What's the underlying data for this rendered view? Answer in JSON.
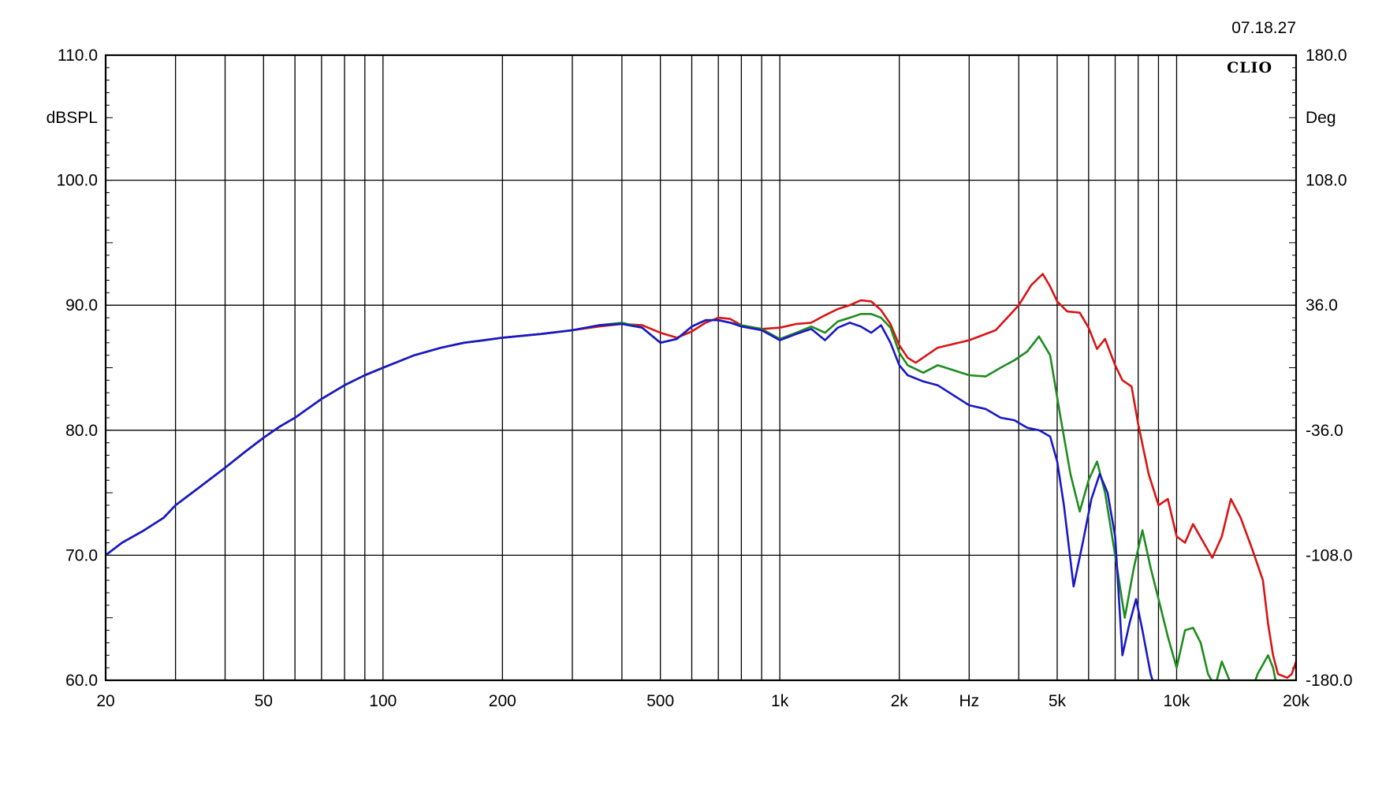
{
  "chart_data": {
    "type": "line",
    "timestamp": "07.18.27",
    "brand": "CLIO",
    "left_axis_unit": "dBSPL",
    "right_axis_unit": "Deg",
    "x_unit": "Hz",
    "x_scale": "log",
    "xlim": [
      20,
      20000
    ],
    "ylim": [
      60,
      110
    ],
    "y2lim": [
      -180,
      180
    ],
    "grid": true,
    "y_ticks": [
      {
        "value": 60,
        "label": "60.0"
      },
      {
        "value": 70,
        "label": "70.0"
      },
      {
        "value": 80,
        "label": "80.0"
      },
      {
        "value": 90,
        "label": "90.0"
      },
      {
        "value": 100,
        "label": "100.0"
      },
      {
        "value": 110,
        "label": "110.0"
      }
    ],
    "y2_ticks": [
      {
        "value": -180,
        "label": "-180.0"
      },
      {
        "value": -108,
        "label": "-108.0"
      },
      {
        "value": -36,
        "label": "-36.0"
      },
      {
        "value": 36,
        "label": "36.0"
      },
      {
        "value": 108,
        "label": "108.0"
      },
      {
        "value": 180,
        "label": "180.0"
      }
    ],
    "x_ticks": [
      {
        "value": 20,
        "label": "20"
      },
      {
        "value": 50,
        "label": "50"
      },
      {
        "value": 100,
        "label": "100"
      },
      {
        "value": 200,
        "label": "200"
      },
      {
        "value": 500,
        "label": "500"
      },
      {
        "value": 1000,
        "label": "1k"
      },
      {
        "value": 2000,
        "label": "2k"
      },
      {
        "value": 5000,
        "label": "5k"
      },
      {
        "value": 10000,
        "label": "10k"
      },
      {
        "value": 20000,
        "label": "20k"
      }
    ],
    "x_unit_position_value": 3000,
    "x_gridlines": [
      20,
      30,
      40,
      50,
      60,
      70,
      80,
      90,
      100,
      200,
      300,
      400,
      500,
      600,
      700,
      800,
      900,
      1000,
      2000,
      3000,
      4000,
      5000,
      6000,
      7000,
      8000,
      9000,
      10000,
      20000
    ],
    "series": [
      {
        "color": "#d81414",
        "x": [
          20,
          22,
          25,
          28,
          30,
          35,
          40,
          45,
          50,
          55,
          60,
          70,
          80,
          90,
          100,
          120,
          140,
          160,
          180,
          200,
          250,
          300,
          350,
          400,
          450,
          500,
          550,
          600,
          650,
          700,
          750,
          800,
          900,
          1000,
          1100,
          1200,
          1300,
          1400,
          1500,
          1600,
          1700,
          1800,
          1900,
          2000,
          2100,
          2200,
          2500,
          3000,
          3500,
          4000,
          4300,
          4600,
          4800,
          5000,
          5300,
          5700,
          6000,
          6300,
          6600,
          7000,
          7300,
          7700,
          8000,
          8500,
          9000,
          9500,
          10000,
          10500,
          11000,
          11700,
          12300,
          13000,
          13700,
          14500,
          15500,
          16500,
          17000,
          17500,
          18000,
          19000,
          19500,
          20000
        ],
        "y": [
          70,
          71,
          72,
          73,
          74,
          75.6,
          77,
          78.3,
          79.4,
          80.3,
          81,
          82.5,
          83.6,
          84.4,
          85,
          86,
          86.6,
          87,
          87.2,
          87.4,
          87.7,
          88,
          88.3,
          88.5,
          88.4,
          87.8,
          87.4,
          87.9,
          88.6,
          89,
          88.9,
          88.4,
          88.1,
          88.2,
          88.5,
          88.6,
          89.2,
          89.7,
          90.0,
          90.4,
          90.3,
          89.6,
          88.5,
          86.8,
          85.8,
          85.4,
          86.6,
          87.2,
          88.0,
          90.0,
          91.6,
          92.5,
          91.5,
          90.3,
          89.5,
          89.4,
          88.2,
          86.5,
          87.3,
          85.2,
          84.0,
          83.5,
          80.5,
          76.5,
          74,
          74.5,
          71.5,
          71,
          72.5,
          71.0,
          69.8,
          71.5,
          74.5,
          73,
          70.5,
          68,
          64.5,
          62,
          60.5,
          60.2,
          60.5,
          61.5
        ]
      },
      {
        "color": "#1e8c1e",
        "x": [
          20,
          22,
          25,
          28,
          30,
          35,
          40,
          45,
          50,
          55,
          60,
          70,
          80,
          90,
          100,
          120,
          140,
          160,
          180,
          200,
          250,
          300,
          350,
          400,
          450,
          500,
          550,
          600,
          650,
          700,
          750,
          800,
          900,
          1000,
          1100,
          1200,
          1300,
          1400,
          1500,
          1600,
          1700,
          1800,
          1900,
          2000,
          2100,
          2300,
          2500,
          3000,
          3300,
          3600,
          3900,
          4200,
          4500,
          4800,
          5100,
          5400,
          5700,
          6000,
          6300,
          6600,
          7000,
          7400,
          7800,
          8200,
          8600,
          9000,
          9500,
          10000,
          10500,
          11000,
          11500,
          12000,
          12500,
          13000,
          14000,
          15000,
          16000,
          17000,
          17500,
          18000
        ],
        "y": [
          70,
          71,
          72,
          73,
          74,
          75.6,
          77,
          78.3,
          79.4,
          80.3,
          81,
          82.5,
          83.6,
          84.4,
          85,
          86,
          86.6,
          87,
          87.2,
          87.4,
          87.7,
          88,
          88.4,
          88.6,
          88.2,
          87.0,
          87.3,
          88.3,
          88.8,
          88.8,
          88.6,
          88.4,
          88.1,
          87.3,
          87.8,
          88.3,
          87.8,
          88.7,
          89.0,
          89.3,
          89.3,
          89.0,
          88.2,
          86.2,
          85.2,
          84.6,
          85.2,
          84.4,
          84.3,
          85.0,
          85.6,
          86.3,
          87.5,
          86.0,
          81.0,
          76.5,
          73.5,
          76.0,
          77.5,
          75,
          70,
          65,
          69,
          72,
          69,
          66.5,
          63.5,
          61,
          64,
          64.2,
          63,
          60.5,
          59.5,
          61.5,
          59,
          58,
          60.5,
          62,
          61,
          59
        ]
      },
      {
        "color": "#1818c8",
        "x": [
          20,
          22,
          25,
          28,
          30,
          35,
          40,
          45,
          50,
          55,
          60,
          70,
          80,
          90,
          100,
          120,
          140,
          160,
          180,
          200,
          250,
          300,
          350,
          400,
          450,
          500,
          550,
          600,
          650,
          700,
          750,
          800,
          900,
          1000,
          1100,
          1200,
          1300,
          1400,
          1500,
          1600,
          1700,
          1800,
          1900,
          2000,
          2100,
          2300,
          2500,
          3000,
          3300,
          3600,
          3900,
          4200,
          4500,
          4800,
          5000,
          5200,
          5500,
          5800,
          6100,
          6400,
          6700,
          7000,
          7300,
          7600,
          7900,
          8200,
          8600,
          9000,
          9300
        ],
        "y": [
          70,
          71,
          72,
          73,
          74,
          75.6,
          77,
          78.3,
          79.4,
          80.3,
          81,
          82.5,
          83.6,
          84.4,
          85,
          86,
          86.6,
          87,
          87.2,
          87.4,
          87.7,
          88,
          88.4,
          88.5,
          88.2,
          87.0,
          87.3,
          88.3,
          88.8,
          88.8,
          88.6,
          88.3,
          88.0,
          87.2,
          87.7,
          88.1,
          87.2,
          88.2,
          88.6,
          88.3,
          87.8,
          88.4,
          87.0,
          85.2,
          84.4,
          83.9,
          83.6,
          82.0,
          81.7,
          81.0,
          80.8,
          80.2,
          80.0,
          79.5,
          77.5,
          74,
          67.5,
          71,
          74.5,
          76.5,
          75,
          71.5,
          62,
          64.5,
          66.5,
          64,
          60.5,
          58.5,
          57.5
        ]
      }
    ]
  }
}
